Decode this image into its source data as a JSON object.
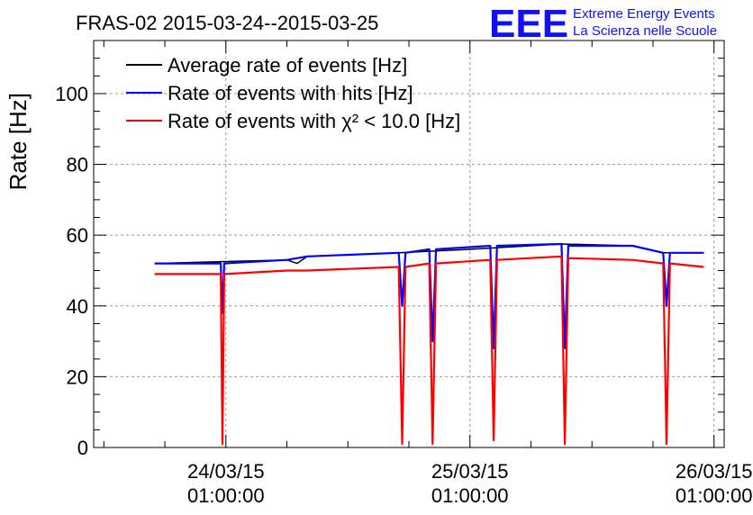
{
  "header": {
    "title": "FRAS-02 2015-03-24--2015-03-25",
    "logo_text": "EEE",
    "logo_line1": "Extreme Energy Events",
    "logo_line2": "La Scienza nelle Scuole",
    "logo_color": "#1010ff"
  },
  "chart_data": {
    "type": "line",
    "title": "FRAS-02 2015-03-24--2015-03-25",
    "xlabel": "",
    "ylabel": "Rate [Hz]",
    "ylim": [
      0,
      115
    ],
    "xlim": [
      "2015-03-23 12:00",
      "2015-03-26 02:00"
    ],
    "grid": true,
    "legend_position": "top-left",
    "y_ticks": [
      "0",
      "20",
      "40",
      "60",
      "80",
      "100"
    ],
    "x_ticks": [
      {
        "date": "2015-03-24 01:00",
        "line1": "24/03/15",
        "line2": "01:00:00"
      },
      {
        "date": "2015-03-25 01:00",
        "line1": "25/03/15",
        "line2": "01:00:00"
      },
      {
        "date": "2015-03-26 01:00",
        "line1": "26/03/15",
        "line2": "01:00:00"
      }
    ],
    "series": [
      {
        "name": "Average rate of events [Hz]",
        "color": "#000000",
        "points": [
          [
            "2015-03-23 18:00",
            52
          ],
          [
            "2015-03-24 07:00",
            53
          ],
          [
            "2015-03-24 08:00",
            52
          ],
          [
            "2015-03-24 09:00",
            54
          ],
          [
            "2015-03-24 18:00",
            55
          ],
          [
            "2015-03-25 01:00",
            56
          ],
          [
            "2015-03-25 10:00",
            57.5
          ],
          [
            "2015-03-25 17:00",
            57
          ],
          [
            "2015-03-25 20:00",
            55
          ],
          [
            "2015-03-26 00:00",
            55
          ]
        ]
      },
      {
        "name": "Rate of events with hits [Hz]",
        "color": "#0000ff",
        "points": [
          [
            "2015-03-23 18:00",
            52
          ],
          [
            "2015-03-24 00:30",
            52
          ],
          [
            "2015-03-24 00:40",
            38
          ],
          [
            "2015-03-24 00:50",
            52
          ],
          [
            "2015-03-24 07:00",
            53
          ],
          [
            "2015-03-24 09:00",
            54
          ],
          [
            "2015-03-24 18:00",
            55
          ],
          [
            "2015-03-24 18:20",
            40
          ],
          [
            "2015-03-24 18:40",
            55
          ],
          [
            "2015-03-24 21:00",
            56
          ],
          [
            "2015-03-24 21:20",
            30
          ],
          [
            "2015-03-24 21:40",
            56
          ],
          [
            "2015-03-25 03:00",
            57
          ],
          [
            "2015-03-25 03:20",
            28
          ],
          [
            "2015-03-25 03:40",
            57
          ],
          [
            "2015-03-25 10:00",
            57.5
          ],
          [
            "2015-03-25 10:20",
            28
          ],
          [
            "2015-03-25 10:40",
            57
          ],
          [
            "2015-03-25 17:00",
            57
          ],
          [
            "2015-03-25 20:00",
            55
          ],
          [
            "2015-03-25 20:20",
            40
          ],
          [
            "2015-03-25 20:40",
            55
          ],
          [
            "2015-03-26 00:00",
            55
          ]
        ]
      },
      {
        "name": "Rate of events with χ² < 10.0 [Hz]",
        "color": "#ff0000",
        "points": [
          [
            "2015-03-23 18:00",
            49
          ],
          [
            "2015-03-24 00:30",
            49
          ],
          [
            "2015-03-24 00:40",
            1
          ],
          [
            "2015-03-24 00:50",
            49
          ],
          [
            "2015-03-24 07:00",
            50
          ],
          [
            "2015-03-24 09:00",
            50
          ],
          [
            "2015-03-24 18:00",
            51
          ],
          [
            "2015-03-24 18:20",
            1
          ],
          [
            "2015-03-24 18:40",
            51
          ],
          [
            "2015-03-24 21:00",
            52
          ],
          [
            "2015-03-24 21:20",
            1
          ],
          [
            "2015-03-24 21:40",
            52
          ],
          [
            "2015-03-25 03:00",
            53
          ],
          [
            "2015-03-25 03:20",
            2
          ],
          [
            "2015-03-25 03:40",
            53
          ],
          [
            "2015-03-25 10:00",
            54
          ],
          [
            "2015-03-25 10:20",
            1
          ],
          [
            "2015-03-25 10:40",
            53.5
          ],
          [
            "2015-03-25 17:00",
            53
          ],
          [
            "2015-03-25 20:00",
            52
          ],
          [
            "2015-03-25 20:20",
            1
          ],
          [
            "2015-03-25 20:40",
            52
          ],
          [
            "2015-03-26 00:00",
            51
          ]
        ]
      }
    ]
  }
}
